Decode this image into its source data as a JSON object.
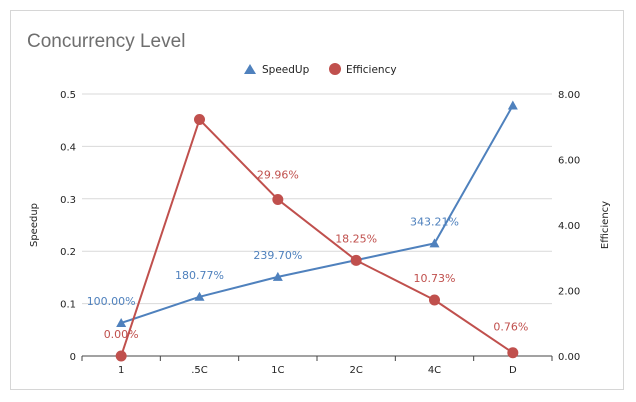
{
  "chart_data": {
    "type": "line",
    "title": "Concurrency Level",
    "categories": [
      "1",
      ".5C",
      "1C",
      "2C",
      "4C",
      "D"
    ],
    "ylabel_left": "Speedup",
    "ylabel_right": "Efficiency",
    "ylim_left": [
      0,
      0.5
    ],
    "ylim_right": [
      0,
      8
    ],
    "yticks_left": [
      "0",
      "0.1",
      "0.2",
      "0.3",
      "0.4",
      "0.5"
    ],
    "yticks_right": [
      "0.00",
      "2.00",
      "4.00",
      "6.00",
      "8.00"
    ],
    "legend_position": "top",
    "grid": true,
    "series": [
      {
        "name": "SpeedUp",
        "axis": "left",
        "marker": "triangle",
        "color": "#4f81bd",
        "values": [
          0.063,
          0.113,
          0.151,
          0.183,
          0.215,
          0.478
        ],
        "labels": [
          "100.00%",
          "180.77%",
          "239.70%",
          "",
          "343.21%",
          ""
        ]
      },
      {
        "name": "Efficiency",
        "axis": "right",
        "marker": "circle",
        "color": "#c0504d",
        "values": [
          0.0,
          7.22,
          4.78,
          2.92,
          1.71,
          0.1
        ],
        "labels": [
          "0.00%",
          "",
          "29.96%",
          "18.25%",
          "10.73%",
          "0.76%"
        ]
      }
    ]
  }
}
